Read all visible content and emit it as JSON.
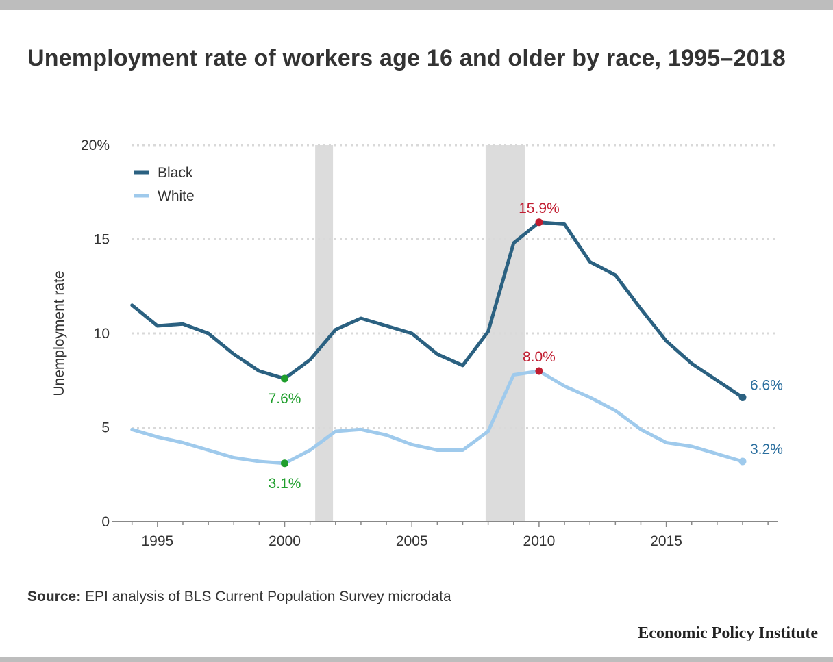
{
  "title": "Unemployment rate of workers age 16 and older by race, 1995–2018",
  "source_label": "Source:",
  "source_text": " EPI analysis of BLS Current Population Survey microdata",
  "organization": "Economic Policy Institute",
  "colors": {
    "black_series": "#2b6181",
    "white_series": "#9fcaec",
    "recession": "#dcdcdc",
    "annotation_low": "#1f9e2c",
    "annotation_peak": "#c01c30",
    "annotation_end": "#2a6e9e",
    "grid": "#d9d9d9",
    "axis": "#888888"
  },
  "chart_data": {
    "type": "line",
    "title": "Unemployment rate of workers age 16 and older by race, 1995–2018",
    "ylabel": "Unemployment rate",
    "xlabel": "",
    "xlim": [
      1993.2,
      2019.4
    ],
    "ylim": [
      0,
      20
    ],
    "x_ticks": [
      1995,
      2000,
      2005,
      2010,
      2015
    ],
    "y_ticks": [
      {
        "value": 0,
        "label": "0"
      },
      {
        "value": 5,
        "label": "5"
      },
      {
        "value": 10,
        "label": "10"
      },
      {
        "value": 15,
        "label": "15"
      },
      {
        "value": 20,
        "label": "20%"
      }
    ],
    "grid": "horizontal dotted",
    "legend_position": "top-left",
    "recessions": [
      [
        2001.2,
        2001.9
      ],
      [
        2007.9,
        2009.45
      ]
    ],
    "x": [
      1994,
      1995,
      1996,
      1997,
      1998,
      1999,
      2000,
      2001,
      2002,
      2003,
      2004,
      2005,
      2006,
      2007,
      2008,
      2009,
      2010,
      2011,
      2012,
      2013,
      2014,
      2015,
      2016,
      2017,
      2018
    ],
    "series": [
      {
        "name": "Black",
        "color": "#2b6181",
        "values": [
          11.5,
          10.4,
          10.5,
          10.0,
          8.9,
          8.0,
          7.6,
          8.6,
          10.2,
          10.8,
          10.4,
          10.0,
          8.9,
          8.3,
          10.1,
          14.8,
          15.9,
          15.8,
          13.8,
          13.1,
          11.3,
          9.6,
          8.4,
          7.5,
          6.6
        ]
      },
      {
        "name": "White",
        "color": "#9fcaec",
        "values": [
          4.9,
          4.5,
          4.2,
          3.8,
          3.4,
          3.2,
          3.1,
          3.8,
          4.8,
          4.9,
          4.6,
          4.1,
          3.8,
          3.8,
          4.8,
          7.8,
          8.0,
          7.2,
          6.6,
          5.9,
          4.9,
          4.2,
          4.0,
          3.6,
          3.2
        ]
      }
    ],
    "annotations": [
      {
        "series": "Black",
        "x": 2000,
        "y": 7.6,
        "label": "7.6%",
        "color": "#1f9e2c",
        "placement": "below"
      },
      {
        "series": "White",
        "x": 2000,
        "y": 3.1,
        "label": "3.1%",
        "color": "#1f9e2c",
        "placement": "below"
      },
      {
        "series": "Black",
        "x": 2010,
        "y": 15.9,
        "label": "15.9%",
        "color": "#c01c30",
        "placement": "above"
      },
      {
        "series": "White",
        "x": 2010,
        "y": 8.0,
        "label": "8.0%",
        "color": "#c01c30",
        "placement": "above"
      },
      {
        "series": "Black",
        "x": 2018,
        "y": 6.6,
        "label": "6.6%",
        "color": "#2a6e9e",
        "placement": "right"
      },
      {
        "series": "White",
        "x": 2018,
        "y": 3.2,
        "label": "3.2%",
        "color": "#2a6e9e",
        "placement": "right"
      }
    ]
  }
}
